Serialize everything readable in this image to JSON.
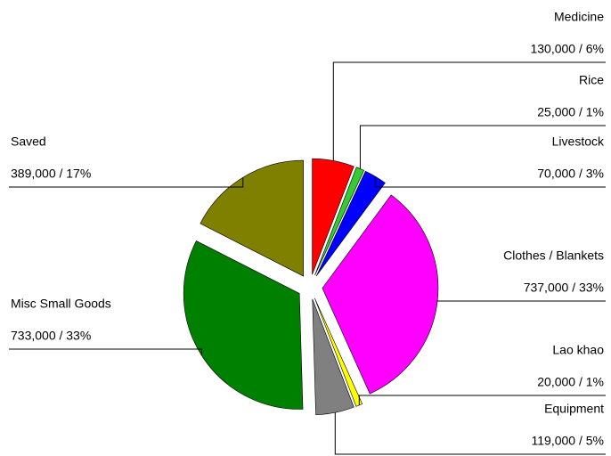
{
  "chart_data": {
    "type": "pie",
    "categories": [
      "Medicine",
      "Rice",
      "Livestock",
      "Clothes / Blankets",
      "Lao khao",
      "Equipment",
      "Misc Small Goods",
      "Saved"
    ],
    "values": [
      130000,
      25000,
      70000,
      737000,
      20000,
      119000,
      733000,
      389000
    ],
    "value_labels": [
      "130,000 / 6%",
      "25,000 / 1%",
      "70,000 / 3%",
      "737,000 / 33%",
      "20,000 / 1%",
      "119,000 / 5%",
      "733,000 / 33%",
      "389,000 / 17%"
    ],
    "colors": [
      "#ff0000",
      "#33cc33",
      "#0000ff",
      "#ff00ff",
      "#ffff00",
      "#808080",
      "#008000",
      "#808000"
    ]
  }
}
